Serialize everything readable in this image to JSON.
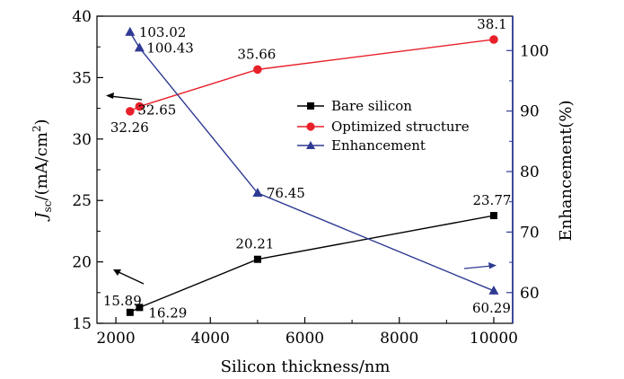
{
  "chart_data": {
    "type": "line",
    "xlabel": "Silicon thickness/nm",
    "ylabel_left_main": "J",
    "ylabel_left_sub": "sc",
    "ylabel_left_unit": "/(mA/cm",
    "ylabel_left_sup": "2",
    "ylabel_left_end": ")",
    "ylabel_right": "Enhancement(%)",
    "xlim": [
      1600,
      10400
    ],
    "ylim_left": [
      15,
      40
    ],
    "ylim_right": [
      54.92,
      105.68
    ],
    "xticks": [
      2000,
      4000,
      6000,
      8000,
      10000
    ],
    "yticks_left": [
      15,
      20,
      25,
      30,
      35,
      40
    ],
    "yticks_right": [
      60,
      70,
      80,
      90,
      100
    ],
    "legend_position": "upper-right",
    "grid": false,
    "series": [
      {
        "name": "Bare silicon",
        "axis": "left",
        "marker": "square",
        "color": "#000000",
        "x": [
          2300,
          2500,
          5000,
          10000
        ],
        "values": [
          15.89,
          16.29,
          20.21,
          23.77
        ],
        "labels": [
          "15.89",
          "16.29",
          "20.21",
          "23.77"
        ]
      },
      {
        "name": "Optimized structure",
        "axis": "left",
        "marker": "circle",
        "color": "#e8202a",
        "x": [
          2300,
          2500,
          5000,
          10000
        ],
        "values": [
          32.26,
          32.65,
          35.66,
          38.1
        ],
        "labels": [
          "32.26",
          "32.65",
          "35.66",
          "38.1"
        ]
      },
      {
        "name": "Enhancement",
        "axis": "right",
        "marker": "triangle",
        "color": "#2f3b93",
        "x": [
          2300,
          2500,
          5000,
          10000
        ],
        "values": [
          103.02,
          100.43,
          76.45,
          60.29
        ],
        "labels": [
          "103.02",
          "100.43",
          "76.45",
          "60.29"
        ]
      }
    ]
  }
}
